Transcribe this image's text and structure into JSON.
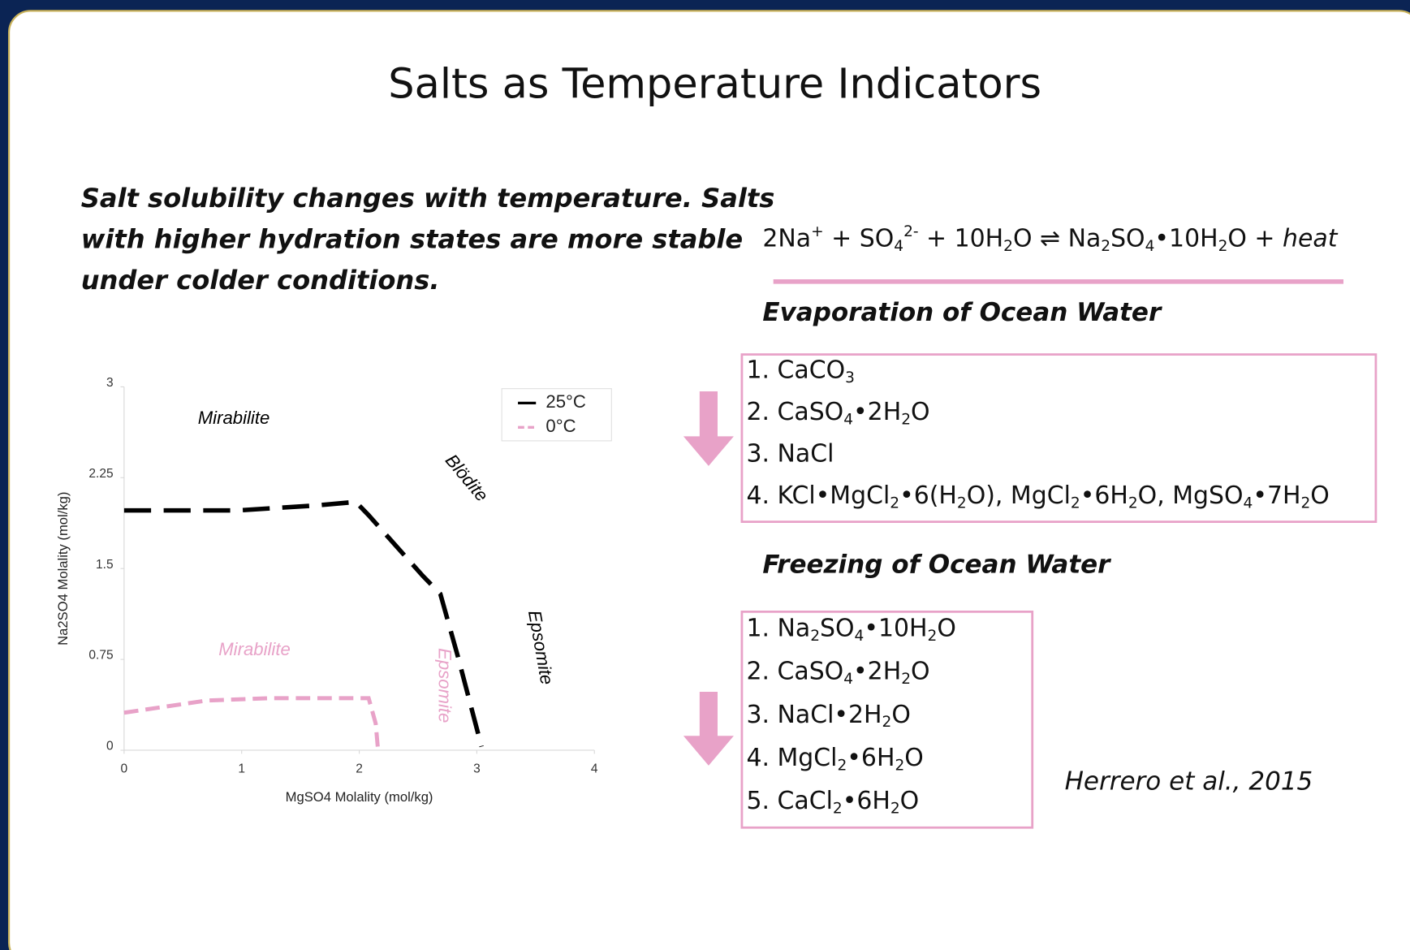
{
  "title": "Salts as Temperature Indicators",
  "intro": [
    "Salt solubility changes with temperature. Salts",
    "with higher hydration states are more stable",
    "under colder conditions."
  ],
  "equation": [
    {
      "text": "2Na"
    },
    {
      "text": "+",
      "pos": "sup"
    },
    {
      "text": " + SO"
    },
    {
      "text": "4",
      "pos": "sub"
    },
    {
      "text": "2-",
      "pos": "sup"
    },
    {
      "text": " + 10H"
    },
    {
      "text": "2",
      "pos": "sub"
    },
    {
      "text": "O ⇌ Na"
    },
    {
      "text": "2",
      "pos": "sub"
    },
    {
      "text": "SO"
    },
    {
      "text": "4",
      "pos": "sub"
    },
    {
      "text": "•10H"
    },
    {
      "text": "2",
      "pos": "sub"
    },
    {
      "text": "O + "
    },
    {
      "text": "heat",
      "pos": "italic"
    }
  ],
  "evaporation": {
    "heading": "Evaporation of Ocean Water",
    "items": [
      [
        {
          "text": "1. CaCO"
        },
        {
          "text": "3",
          "pos": "sub"
        }
      ],
      [
        {
          "text": "2. CaSO"
        },
        {
          "text": "4",
          "pos": "sub"
        },
        {
          "text": "•2H"
        },
        {
          "text": "2",
          "pos": "sub"
        },
        {
          "text": "O"
        }
      ],
      [
        {
          "text": "3. NaCl"
        }
      ],
      [
        {
          "text": "4. KCl•MgCl"
        },
        {
          "text": "2",
          "pos": "sub"
        },
        {
          "text": "•6(H"
        },
        {
          "text": "2",
          "pos": "sub"
        },
        {
          "text": "O), MgCl"
        },
        {
          "text": "2",
          "pos": "sub"
        },
        {
          "text": "•6H"
        },
        {
          "text": "2",
          "pos": "sub"
        },
        {
          "text": "O, MgSO"
        },
        {
          "text": "4",
          "pos": "sub"
        },
        {
          "text": "•7H"
        },
        {
          "text": "2",
          "pos": "sub"
        },
        {
          "text": "O"
        }
      ]
    ]
  },
  "freezing": {
    "heading": "Freezing of Ocean Water",
    "items": [
      [
        {
          "text": "1. Na"
        },
        {
          "text": "2",
          "pos": "sub"
        },
        {
          "text": "SO"
        },
        {
          "text": "4",
          "pos": "sub"
        },
        {
          "text": "•10H"
        },
        {
          "text": "2",
          "pos": "sub"
        },
        {
          "text": "O"
        }
      ],
      [
        {
          "text": "2. CaSO"
        },
        {
          "text": "4",
          "pos": "sub"
        },
        {
          "text": "•2H"
        },
        {
          "text": "2",
          "pos": "sub"
        },
        {
          "text": "O"
        }
      ],
      [
        {
          "text": "3. NaCl•2H"
        },
        {
          "text": "2",
          "pos": "sub"
        },
        {
          "text": "O"
        }
      ],
      [
        {
          "text": "4. MgCl"
        },
        {
          "text": "2",
          "pos": "sub"
        },
        {
          "text": "•6H"
        },
        {
          "text": "2",
          "pos": "sub"
        },
        {
          "text": "O"
        }
      ],
      [
        {
          "text": "5. CaCl"
        },
        {
          "text": "2",
          "pos": "sub"
        },
        {
          "text": "•6H"
        },
        {
          "text": "2",
          "pos": "sub"
        },
        {
          "text": "O"
        }
      ]
    ]
  },
  "citation": "Herrero et al., 2015",
  "chart_data": {
    "type": "line",
    "x_label": "MgSO4 Molality (mol/kg)",
    "y_label": "Na2SO4 Molality (mol/kg)",
    "xlim": [
      0,
      4
    ],
    "xticks": [
      0,
      1,
      2,
      3,
      4
    ],
    "ylim": [
      0,
      3
    ],
    "yticks": [
      0,
      0.75,
      1.5,
      2.25,
      3
    ],
    "grid": false,
    "legend": "top-right",
    "series": [
      {
        "name": "25°C",
        "color": "#000000",
        "x": [
          0,
          0.97,
          1.62,
          1.97,
          2.08,
          2.54,
          2.69,
          2.84,
          3.04
        ],
        "values": [
          1.98,
          1.98,
          2.02,
          2.05,
          1.94,
          1.44,
          1.29,
          0.77,
          0.03
        ]
      },
      {
        "name": "0°C",
        "color": "#e8a2c8",
        "x": [
          0,
          0.7,
          1.24,
          2.08,
          2.14,
          2.16
        ],
        "values": [
          0.31,
          0.41,
          0.43,
          0.43,
          0.22,
          0
        ]
      }
    ],
    "annotations": [
      {
        "text": "Mirabilite",
        "color": "#000000"
      },
      {
        "text": "Blödite",
        "color": "#000000"
      },
      {
        "text": "Epsomite",
        "color": "#000000"
      },
      {
        "text": "Mirabilite",
        "color": "#e8a2c8"
      },
      {
        "text": "Epsomite",
        "color": "#e8a2c8"
      }
    ]
  }
}
